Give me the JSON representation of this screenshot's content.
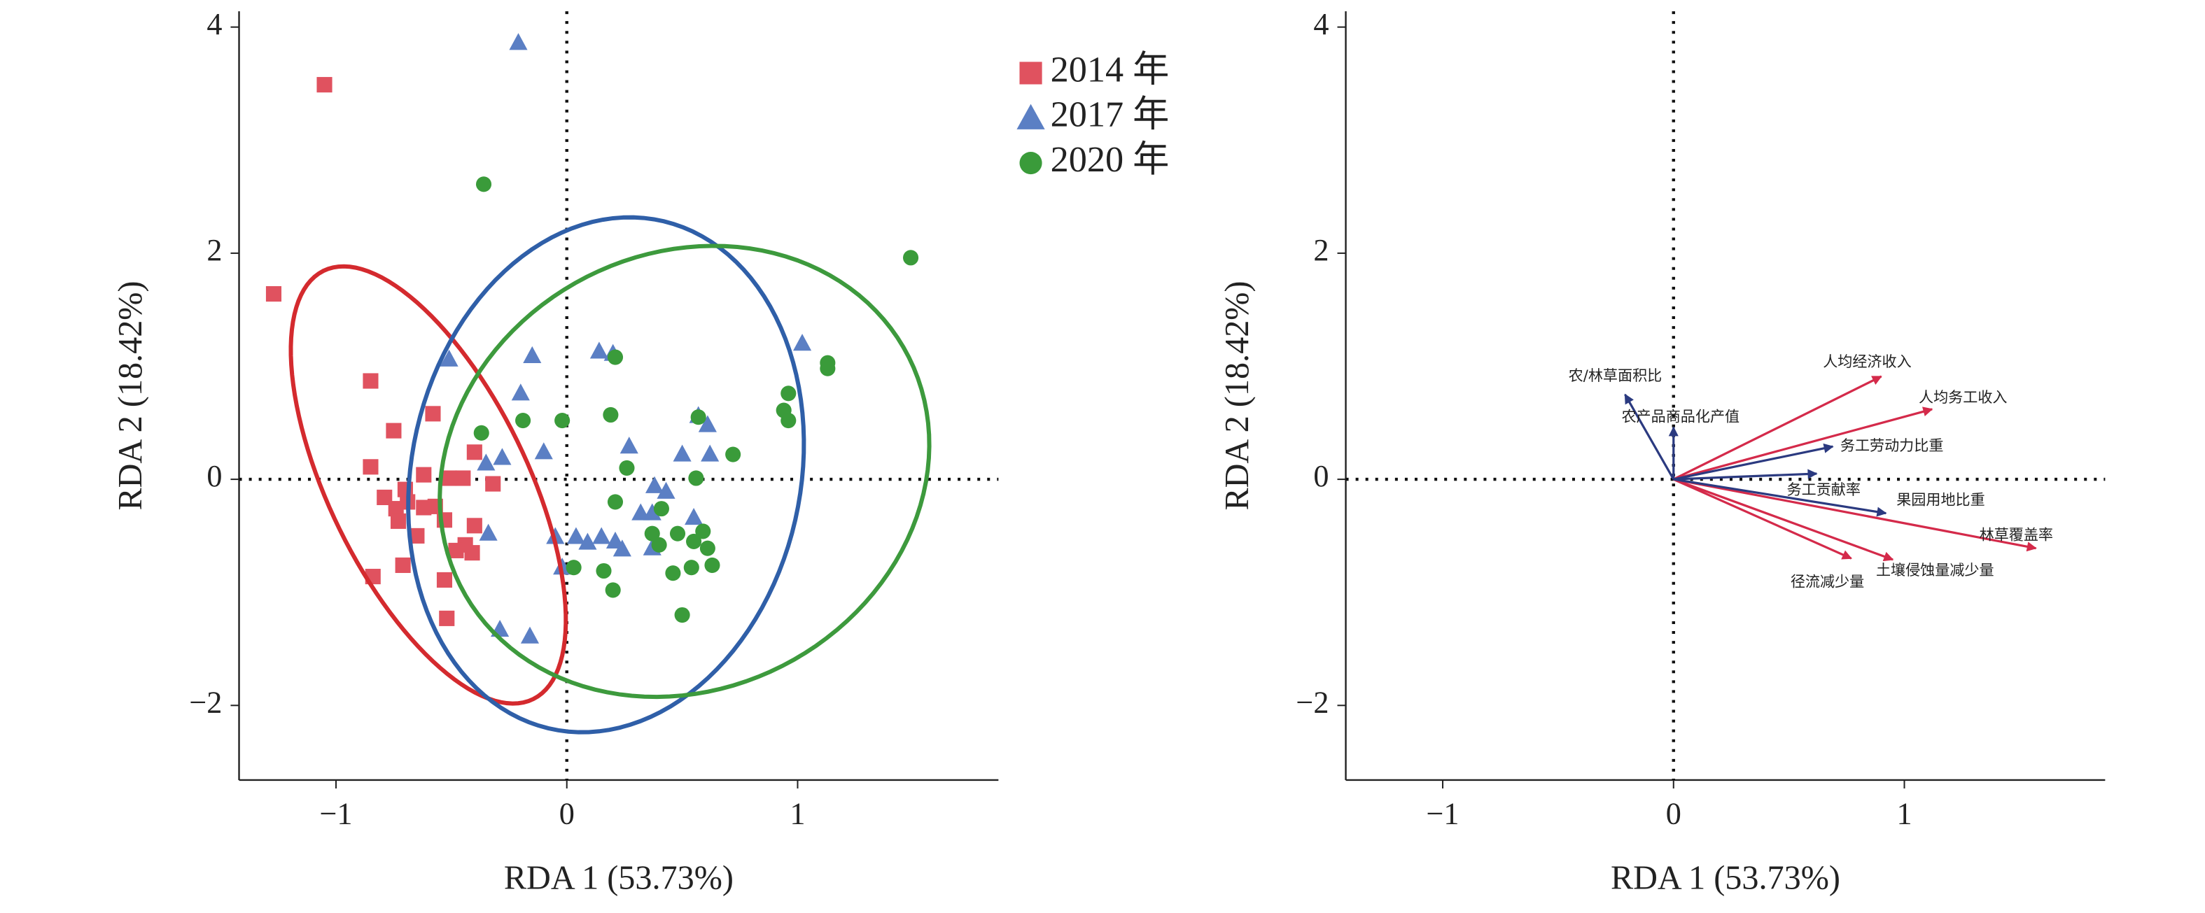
{
  "chart_data": [
    {
      "type": "scatter",
      "xlabel": "RDA 1 (53.73%)",
      "ylabel": "RDA 2 (18.42%)",
      "xlim": [
        -1.42,
        1.87
      ],
      "ylim": [
        -2.66,
        4.14
      ],
      "xticks": [
        {
          "value": -1,
          "label": "−1"
        },
        0,
        1
      ],
      "yticks": [
        {
          "value": -2,
          "label": "−2"
        },
        0,
        2,
        4
      ],
      "hlines": [
        0
      ],
      "vlines": [
        0
      ],
      "legend": "right",
      "series": [
        {
          "name": "2014 年",
          "marker": "square",
          "color": "#e0525f",
          "ellipse_color": "#d42a2e",
          "x": [
            -1.05,
            -1.27,
            -0.85,
            -0.75,
            -0.58,
            -0.85,
            -0.4,
            -0.32,
            -0.62,
            -0.51,
            -0.45,
            -0.79,
            -0.74,
            -0.73,
            -0.69,
            -0.65,
            -0.7,
            -0.57,
            -0.53,
            -0.44,
            -0.48,
            -0.41,
            -0.71,
            -0.84,
            -0.53,
            -0.52,
            -0.4,
            -0.62
          ],
          "y": [
            3.49,
            1.64,
            0.87,
            0.43,
            0.58,
            0.11,
            0.24,
            -0.04,
            0.04,
            0.01,
            0.01,
            -0.16,
            -0.26,
            -0.37,
            -0.2,
            -0.5,
            -0.09,
            -0.24,
            -0.36,
            -0.58,
            -0.63,
            -0.65,
            -0.76,
            -0.86,
            -0.89,
            -1.23,
            -0.41,
            -0.25
          ],
          "ellipse": {
            "cx": -0.6,
            "cy": -0.05,
            "rx": 1.97,
            "ry": 0.46,
            "angle": -78.6
          }
        },
        {
          "name": "2017 年",
          "marker": "triangle",
          "color": "#5b7fc4",
          "ellipse_color": "#2f5fa8",
          "x": [
            -0.21,
            -0.51,
            -0.15,
            0.14,
            0.2,
            -0.2,
            -0.1,
            -0.35,
            -0.28,
            0.27,
            0.57,
            0.61,
            0.5,
            0.62,
            1.02,
            0.38,
            0.43,
            0.32,
            -0.05,
            0.04,
            0.15,
            0.21,
            0.24,
            0.09,
            0.37,
            0.55,
            -0.02,
            -0.34,
            -0.29,
            -0.16,
            0.37
          ],
          "y": [
            3.86,
            1.06,
            1.09,
            1.13,
            1.11,
            0.76,
            0.24,
            0.14,
            0.19,
            0.29,
            0.56,
            0.48,
            0.22,
            0.22,
            1.2,
            -0.06,
            -0.11,
            -0.3,
            -0.51,
            -0.51,
            -0.51,
            -0.55,
            -0.62,
            -0.56,
            -0.61,
            -0.34,
            -0.78,
            -0.48,
            -1.33,
            -1.39,
            -0.3
          ],
          "ellipse": {
            "cx": 0.17,
            "cy": 0.04,
            "rx": 2.28,
            "ry": 0.85,
            "angle": 87
          }
        },
        {
          "name": "2020 年",
          "marker": "circle",
          "color": "#3a9b3a",
          "ellipse_color": "#3d9a3d",
          "x": [
            -0.36,
            1.49,
            0.21,
            1.13,
            1.13,
            0.96,
            0.94,
            0.96,
            0.19,
            0.57,
            -0.02,
            -0.19,
            -0.37,
            0.72,
            0.26,
            0.56,
            0.21,
            0.37,
            0.48,
            0.55,
            0.61,
            0.63,
            0.54,
            0.46,
            0.16,
            0.2,
            0.03,
            0.5,
            0.4,
            0.41,
            0.59
          ],
          "y": [
            2.61,
            1.96,
            1.08,
            0.98,
            1.03,
            0.76,
            0.61,
            0.52,
            0.57,
            0.55,
            0.52,
            0.52,
            0.41,
            0.22,
            0.1,
            0.01,
            -0.2,
            -0.48,
            -0.48,
            -0.55,
            -0.61,
            -0.76,
            -0.78,
            -0.83,
            -0.81,
            -0.98,
            -0.78,
            -1.2,
            -0.58,
            -0.26,
            -0.46
          ],
          "ellipse": {
            "cx": 0.51,
            "cy": 0.07,
            "rx": 2.0,
            "ry": 1.05,
            "angle": 85
          }
        }
      ]
    },
    {
      "type": "biplot",
      "xlabel": "RDA 1 (53.73%)",
      "ylabel": "RDA 2 (18.42%)",
      "xlim": [
        -1.42,
        1.87
      ],
      "ylim": [
        -2.66,
        4.14
      ],
      "xticks": [
        {
          "value": -1,
          "label": "−1"
        },
        0,
        1
      ],
      "yticks": [
        {
          "value": -2,
          "label": "−2"
        },
        0,
        2,
        4
      ],
      "hlines": [
        0
      ],
      "vlines": [
        0
      ],
      "vectors": [
        {
          "label": "人均经济收入",
          "x": 0.9,
          "y": 0.91,
          "color": "#d42a4a"
        },
        {
          "label": "人均务工收入",
          "x": 1.12,
          "y": 0.62,
          "color": "#d42a4a"
        },
        {
          "label": "林草覆盖率",
          "x": 1.57,
          "y": -0.61,
          "color": "#d42a4a"
        },
        {
          "label": "土壤侵蚀量减少量",
          "x": 0.95,
          "y": -0.71,
          "color": "#d42a4a"
        },
        {
          "label": "径流减少量",
          "x": 0.77,
          "y": -0.7,
          "color": "#d42a4a"
        },
        {
          "label": "农/林草面积比",
          "x": -0.21,
          "y": 0.75,
          "color": "#2b3a80"
        },
        {
          "label": "农产品商品化产值",
          "x": 0.0,
          "y": 0.46,
          "color": "#2b3a80"
        },
        {
          "label": "务工劳动力比重",
          "x": 0.69,
          "y": 0.29,
          "color": "#2b3a80"
        },
        {
          "label": "务工贡献率",
          "x": 0.62,
          "y": 0.05,
          "color": "#2b3a80"
        },
        {
          "label": "果园用地比重",
          "x": 0.92,
          "y": -0.3,
          "color": "#2b3a80"
        }
      ]
    }
  ]
}
